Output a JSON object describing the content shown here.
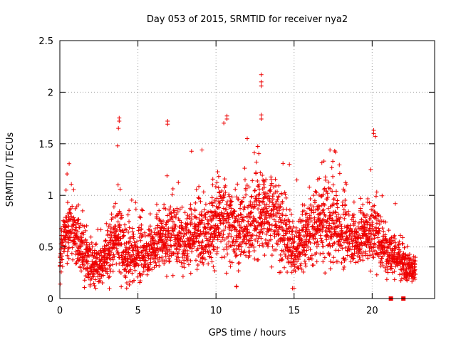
{
  "chart_data": {
    "type": "scatter",
    "title": "Day 053 of 2015, SRMTID for receiver nya2",
    "xlabel": "GPS time / hours",
    "ylabel": "SRMTID / TECUs",
    "xlim": [
      0,
      24
    ],
    "ylim": [
      0,
      2.5
    ],
    "xticks": [
      0,
      5,
      10,
      15,
      20
    ],
    "xtick_labels": [
      "0",
      "5",
      "10",
      "15",
      "20"
    ],
    "yticks": [
      0,
      0.5,
      1,
      1.5,
      2,
      2.5
    ],
    "ytick_labels": [
      "0",
      "0.5",
      "1",
      "1.5",
      "2",
      "2.5"
    ],
    "grid": true,
    "marker": "+",
    "color": "#ee0000",
    "series": [
      {
        "name": "SRMTID",
        "sample_step_hours": 0.05,
        "envelope": {
          "x": [
            0,
            0.5,
            1,
            1.5,
            2,
            2.5,
            3,
            3.5,
            3.8,
            4,
            4.5,
            5,
            5.5,
            6,
            6.5,
            7,
            7.5,
            8,
            8.5,
            9,
            9.5,
            10,
            10.5,
            11,
            11.5,
            12,
            12.5,
            13,
            13.5,
            14,
            14.5,
            15,
            15.5,
            16,
            16.5,
            17,
            17.5,
            18,
            18.5,
            19,
            19.5,
            20,
            20.5,
            21,
            21.5,
            22,
            22.5,
            22.8
          ],
          "typical": [
            0.45,
            0.72,
            0.6,
            0.4,
            0.35,
            0.3,
            0.42,
            0.55,
            0.6,
            0.45,
            0.4,
            0.45,
            0.42,
            0.5,
            0.55,
            0.6,
            0.6,
            0.55,
            0.6,
            0.65,
            0.65,
            0.72,
            0.75,
            0.7,
            0.65,
            0.7,
            0.78,
            0.85,
            0.8,
            0.7,
            0.6,
            0.45,
            0.55,
            0.65,
            0.7,
            0.75,
            0.72,
            0.65,
            0.6,
            0.55,
            0.6,
            0.65,
            0.55,
            0.45,
            0.4,
            0.35,
            0.3,
            0.3
          ],
          "spread": [
            0.25,
            0.3,
            0.3,
            0.25,
            0.22,
            0.2,
            0.25,
            0.3,
            0.35,
            0.28,
            0.28,
            0.28,
            0.28,
            0.3,
            0.32,
            0.35,
            0.32,
            0.32,
            0.32,
            0.35,
            0.35,
            0.4,
            0.42,
            0.4,
            0.38,
            0.4,
            0.45,
            0.5,
            0.45,
            0.4,
            0.38,
            0.3,
            0.32,
            0.35,
            0.38,
            0.4,
            0.38,
            0.35,
            0.32,
            0.3,
            0.32,
            0.35,
            0.3,
            0.25,
            0.2,
            0.18,
            0.15,
            0.15
          ]
        },
        "notable_points": [
          {
            "x": 3.8,
            "y": 1.75
          },
          {
            "x": 3.8,
            "y": 1.72
          },
          {
            "x": 3.75,
            "y": 1.65
          },
          {
            "x": 6.9,
            "y": 1.72
          },
          {
            "x": 6.9,
            "y": 1.69
          },
          {
            "x": 10.7,
            "y": 1.77
          },
          {
            "x": 10.7,
            "y": 1.74
          },
          {
            "x": 10.5,
            "y": 1.7
          },
          {
            "x": 12.9,
            "y": 2.17
          },
          {
            "x": 12.9,
            "y": 2.1
          },
          {
            "x": 12.9,
            "y": 2.06
          },
          {
            "x": 12.9,
            "y": 1.78
          },
          {
            "x": 12.9,
            "y": 1.74
          },
          {
            "x": 20.1,
            "y": 1.63
          },
          {
            "x": 20.1,
            "y": 1.6
          },
          {
            "x": 20.2,
            "y": 1.57
          },
          {
            "x": 3.7,
            "y": 1.48
          },
          {
            "x": 9.1,
            "y": 1.44
          },
          {
            "x": 12.0,
            "y": 1.55
          },
          {
            "x": 14.7,
            "y": 1.3
          },
          {
            "x": 17.3,
            "y": 1.44
          },
          {
            "x": 17.6,
            "y": 1.43
          },
          {
            "x": 14.9,
            "y": 0.1
          },
          {
            "x": 15.0,
            "y": 0.1
          },
          {
            "x": 2.3,
            "y": 0.1
          },
          {
            "x": 11.3,
            "y": 0.12
          }
        ]
      }
    ],
    "baseline_markers": [
      21.2,
      22.0
    ]
  }
}
